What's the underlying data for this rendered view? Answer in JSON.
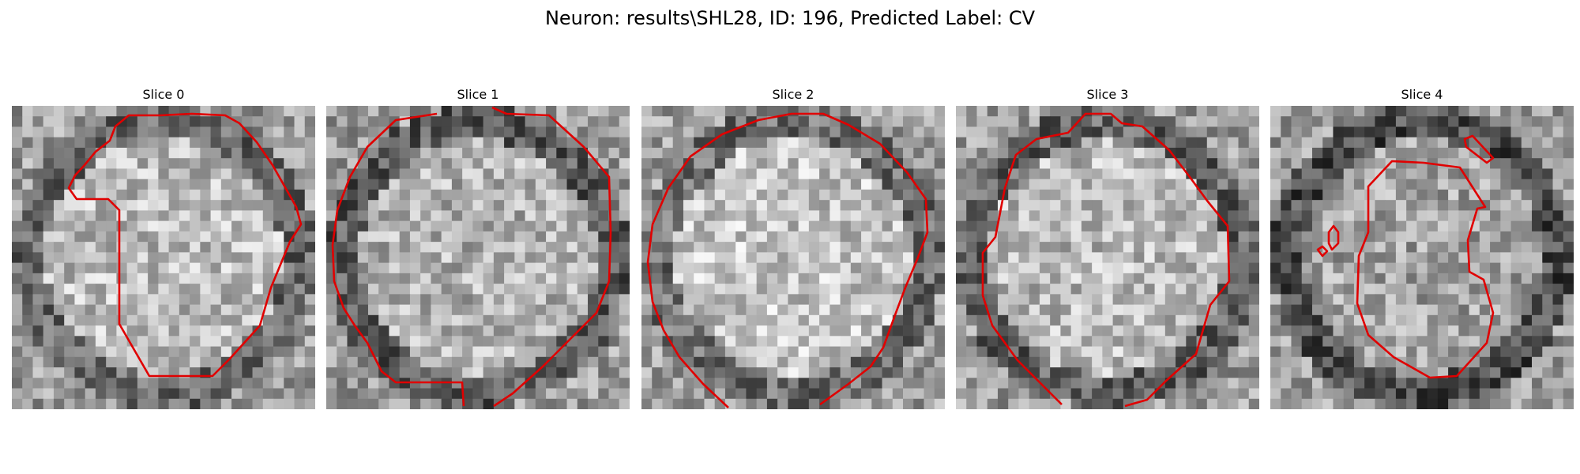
{
  "figure": {
    "title": "Neuron: results\\SHL28, ID: 196, Predicted Label: CV"
  },
  "style": {
    "contour_color": "#e00000"
  },
  "panels": [
    {
      "label": "Slice 0",
      "seed": 11,
      "bright": 0.74
    },
    {
      "label": "Slice 1",
      "seed": 23,
      "bright": 0.7
    },
    {
      "label": "Slice 2",
      "seed": 37,
      "bright": 0.77
    },
    {
      "label": "Slice 3",
      "seed": 51,
      "bright": 0.73
    },
    {
      "label": "Slice 4",
      "seed": 67,
      "bright": 0.64
    }
  ]
}
